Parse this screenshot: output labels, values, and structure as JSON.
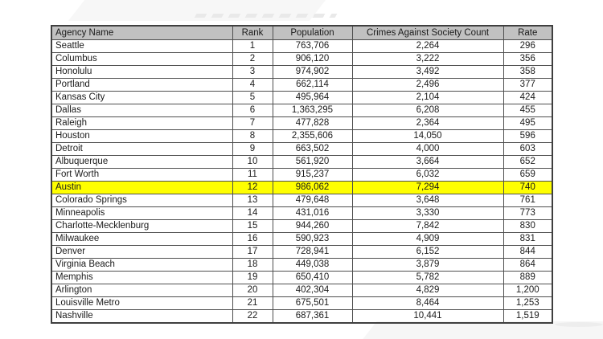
{
  "chart_data": {
    "type": "table",
    "columns": [
      "Agency Name",
      "Rank",
      "Population",
      "Crimes Against Society Count",
      "Rate"
    ],
    "column_alignments": [
      "left",
      "center",
      "center",
      "center",
      "center"
    ],
    "highlighted_row_index": 11,
    "rows": [
      [
        "Seattle",
        "1",
        "763,706",
        "2,264",
        "296"
      ],
      [
        "Columbus",
        "2",
        "906,120",
        "3,222",
        "356"
      ],
      [
        "Honolulu",
        "3",
        "974,902",
        "3,492",
        "358"
      ],
      [
        "Portland",
        "4",
        "662,114",
        "2,496",
        "377"
      ],
      [
        "Kansas City",
        "5",
        "495,964",
        "2,104",
        "424"
      ],
      [
        "Dallas",
        "6",
        "1,363,295",
        "6,208",
        "455"
      ],
      [
        "Raleigh",
        "7",
        "477,828",
        "2,364",
        "495"
      ],
      [
        "Houston",
        "8",
        "2,355,606",
        "14,050",
        "596"
      ],
      [
        "Detroit",
        "9",
        "663,502",
        "4,000",
        "603"
      ],
      [
        "Albuquerque",
        "10",
        "561,920",
        "3,664",
        "652"
      ],
      [
        "Fort Worth",
        "11",
        "915,237",
        "6,032",
        "659"
      ],
      [
        "Austin",
        "12",
        "986,062",
        "7,294",
        "740"
      ],
      [
        "Colorado Springs",
        "13",
        "479,648",
        "3,648",
        "761"
      ],
      [
        "Minneapolis",
        "14",
        "431,016",
        "3,330",
        "773"
      ],
      [
        "Charlotte-Mecklenburg",
        "15",
        "944,260",
        "7,842",
        "830"
      ],
      [
        "Milwaukee",
        "16",
        "590,923",
        "4,909",
        "831"
      ],
      [
        "Denver",
        "17",
        "728,941",
        "6,152",
        "844"
      ],
      [
        "Virginia Beach",
        "18",
        "449,038",
        "3,879",
        "864"
      ],
      [
        "Memphis",
        "19",
        "650,410",
        "5,782",
        "889"
      ],
      [
        "Arlington",
        "20",
        "402,304",
        "4,829",
        "1,200"
      ],
      [
        "Louisville Metro",
        "21",
        "675,501",
        "8,464",
        "1,253"
      ],
      [
        "Nashville",
        "22",
        "687,361",
        "10,441",
        "1,519"
      ]
    ]
  },
  "styles": {
    "highlight_color": "#ffff00",
    "header_bg": "#c1c1c1",
    "border_color": "#4f4f4f",
    "text_color": "#1b1b1b"
  }
}
